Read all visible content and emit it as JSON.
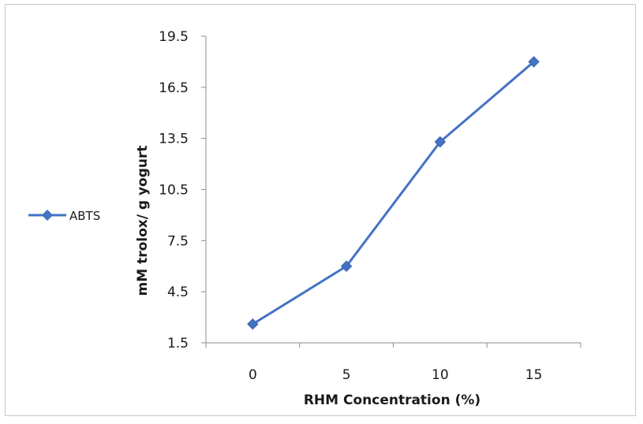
{
  "chart_data": {
    "type": "line",
    "title": "",
    "xlabel": "RHM Concentration (%)",
    "ylabel": "mM trolox/ g yogurt",
    "categories": [
      "0",
      "5",
      "10",
      "15"
    ],
    "y_ticks": [
      "1.5",
      "4.5",
      "7.5",
      "10.5",
      "13.5",
      "16.5",
      "19.5"
    ],
    "ylim": [
      1.5,
      19.5
    ],
    "grid": false,
    "legend_position": "left",
    "series": [
      {
        "name": "ABTS",
        "color": "#4472c4",
        "marker": "diamond",
        "values": [
          2.6,
          6.0,
          13.3,
          18.0
        ]
      }
    ]
  }
}
